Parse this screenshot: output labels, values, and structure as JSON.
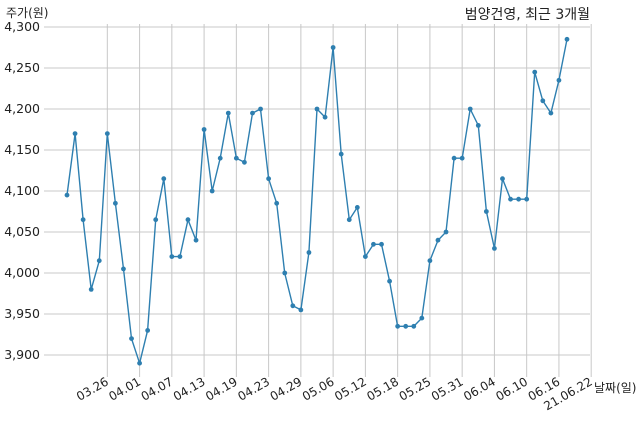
{
  "chart_data": {
    "type": "line",
    "title": "범양건영, 최근 3개월",
    "ylabel": "주가(원)",
    "xlabel": "날짜(일)",
    "ylim": [
      3870,
      4300
    ],
    "yticks": [
      3900,
      3950,
      4000,
      4050,
      4100,
      4150,
      4200,
      4250,
      4300
    ],
    "ytick_labels": [
      "3,900",
      "3,950",
      "4,000",
      "4,050",
      "4,100",
      "4,150",
      "4,200",
      "4,250",
      "4,300"
    ],
    "xtick_positions": [
      5,
      9,
      13,
      17,
      21,
      25,
      29,
      33,
      37,
      41,
      45,
      49,
      53,
      57,
      61,
      65
    ],
    "xtick_labels": [
      "03.26",
      "04.01",
      "04.07",
      "04.13",
      "04.19",
      "04.23",
      "04.29",
      "05.06",
      "05.12",
      "05.18",
      "05.25",
      "05.31",
      "06.04",
      "06.10",
      "06.16",
      "21.06.22"
    ],
    "grid": true,
    "series": [
      {
        "color": "#2e7fb0",
        "values": [
          4095,
          4170,
          4065,
          3980,
          4015,
          4170,
          4085,
          4005,
          3920,
          3890,
          3930,
          4065,
          4115,
          4020,
          4020,
          4065,
          4040,
          4175,
          4100,
          4140,
          4195,
          4140,
          4135,
          4195,
          4200,
          4115,
          4085,
          4000,
          3960,
          3955,
          4025,
          4200,
          4190,
          4275,
          4145,
          4065,
          4080,
          4020,
          4035,
          4035,
          3990,
          3935,
          3935,
          3935,
          3945,
          4015,
          4040,
          4050,
          4140,
          4140,
          4200,
          4180,
          4075,
          4030,
          4115,
          4090,
          4090,
          4090,
          4245,
          4210,
          4195,
          4235,
          4285
        ]
      }
    ]
  }
}
